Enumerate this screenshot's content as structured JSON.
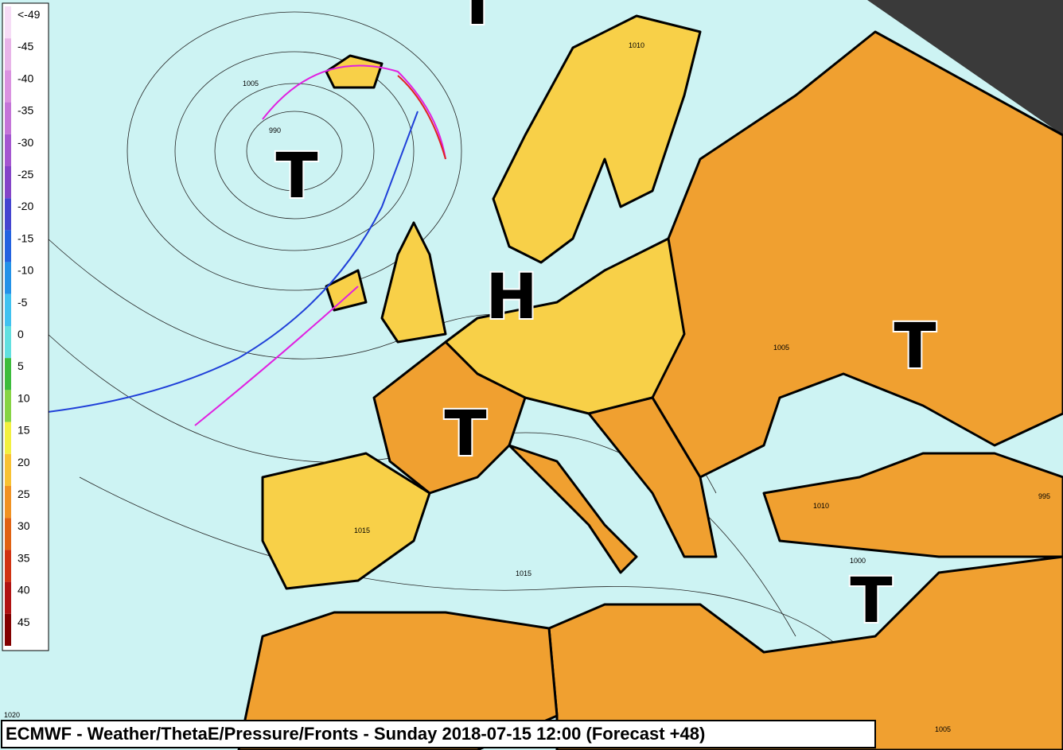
{
  "legend": {
    "items": [
      {
        "label": "<-49",
        "color": "#f6dcf6"
      },
      {
        "label": "-45",
        "color": "#e8b4e8"
      },
      {
        "label": "-40",
        "color": "#da92e0"
      },
      {
        "label": "-35",
        "color": "#c474d8"
      },
      {
        "label": "-30",
        "color": "#a456d0"
      },
      {
        "label": "-25",
        "color": "#8444c8"
      },
      {
        "label": "-20",
        "color": "#4444d0"
      },
      {
        "label": "-15",
        "color": "#2262e0"
      },
      {
        "label": "-10",
        "color": "#2292e8"
      },
      {
        "label": "-5",
        "color": "#40c2f0"
      },
      {
        "label": "0",
        "color": "#62e0e0"
      },
      {
        "label": "5",
        "color": "#3cbc3c"
      },
      {
        "label": "10",
        "color": "#86d444"
      },
      {
        "label": "15",
        "color": "#f2f040"
      },
      {
        "label": "20",
        "color": "#f8c232"
      },
      {
        "label": "25",
        "color": "#f09222"
      },
      {
        "label": "30",
        "color": "#e06212"
      },
      {
        "label": "35",
        "color": "#d03212"
      },
      {
        "label": "40",
        "color": "#b01212"
      },
      {
        "label": "45",
        "color": "#820000"
      }
    ]
  },
  "pressure_centers": [
    {
      "label": "T"
    },
    {
      "label": "T"
    },
    {
      "label": "H"
    },
    {
      "label": "T"
    },
    {
      "label": "T"
    },
    {
      "label": "T"
    }
  ],
  "isobar_labels": [
    "1005",
    "990",
    "1010",
    "1015",
    "1015",
    "1010",
    "1005",
    "1000",
    "995",
    "1020",
    "1005"
  ],
  "footer": {
    "title": "ECMWF - Weather/ThetaE/Pressure/Fronts - Sunday 2018-07-15 12:00 (Forecast +48)"
  }
}
